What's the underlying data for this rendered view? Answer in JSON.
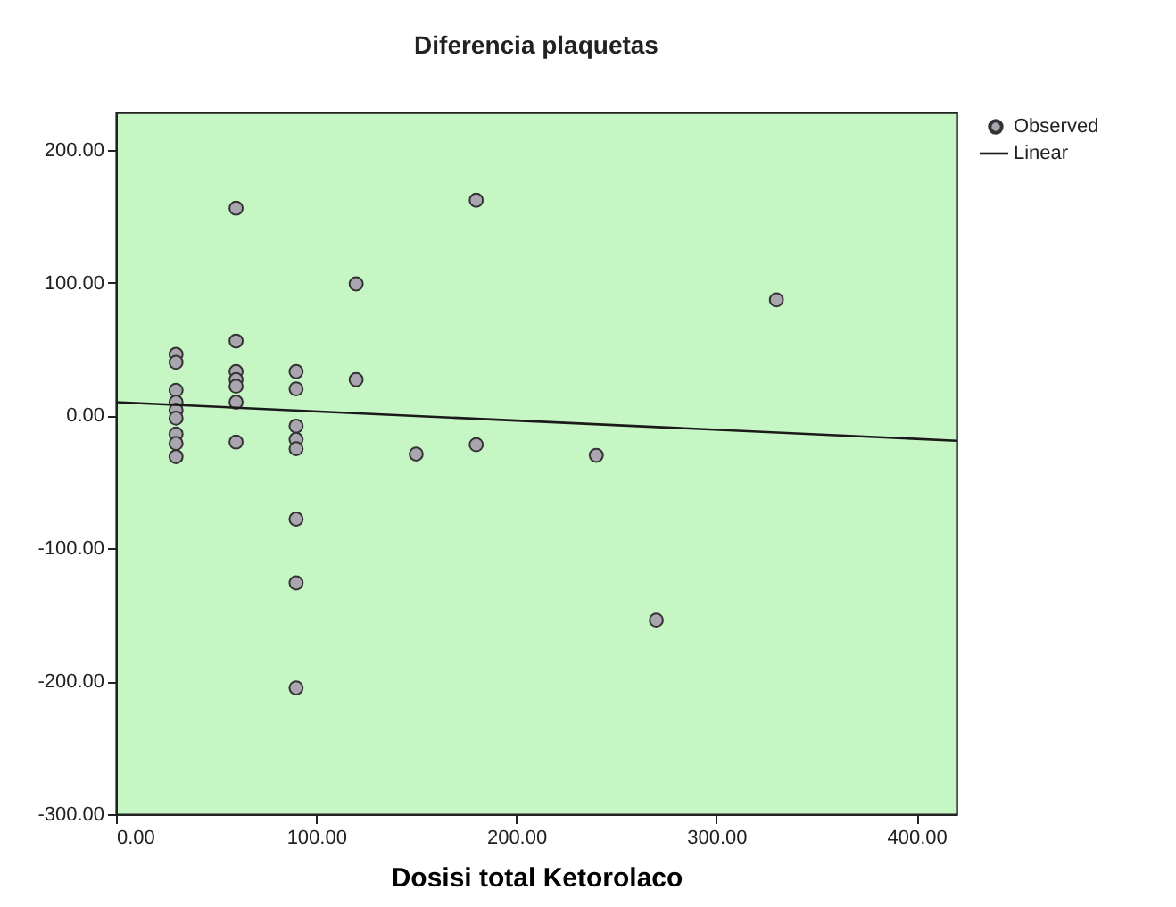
{
  "chart_data": {
    "type": "scatter",
    "title": "Diferencia plaquetas",
    "xlabel": "Dosisi total Ketorolaco",
    "xlim": [
      0,
      420
    ],
    "ylim": [
      -300,
      228
    ],
    "xticks": [
      {
        "value": 0,
        "label": "0.00"
      },
      {
        "value": 100,
        "label": "100.00"
      },
      {
        "value": 200,
        "label": "200.00"
      },
      {
        "value": 300,
        "label": "300.00"
      },
      {
        "value": 400,
        "label": "400.00"
      }
    ],
    "yticks": [
      {
        "value": -300,
        "label": "-300.00"
      },
      {
        "value": -200,
        "label": "-200.00"
      },
      {
        "value": -100,
        "label": "-100.00"
      },
      {
        "value": 0,
        "label": "0.00"
      },
      {
        "value": 100,
        "label": "100.00"
      },
      {
        "value": 200,
        "label": "200.00"
      }
    ],
    "grid": false,
    "legend": "top right",
    "marker": "circle",
    "series": [
      {
        "name": "Observed",
        "color": "#a9a6b0",
        "x": [
          30,
          30,
          30,
          30,
          30,
          30,
          30,
          30,
          30,
          60,
          60,
          60,
          60,
          60,
          60,
          60,
          90,
          90,
          90,
          90,
          90,
          90,
          90,
          90,
          120,
          120,
          150,
          180,
          180,
          240,
          330,
          270
        ],
        "values": [
          46,
          40,
          19,
          10,
          4,
          -2,
          -14,
          -21,
          -31,
          156,
          56,
          33,
          27,
          22,
          10,
          -20,
          33,
          20,
          -8,
          -18,
          -25,
          -78,
          -126,
          -205,
          99,
          27,
          -29,
          162,
          -22,
          -30,
          87,
          -154
        ]
      },
      {
        "name": "Linear",
        "type": "line",
        "marker": "none",
        "color": "#1a1a1a",
        "line_style": "solid",
        "x": [
          0,
          420
        ],
        "values": [
          10,
          -19
        ]
      }
    ]
  }
}
